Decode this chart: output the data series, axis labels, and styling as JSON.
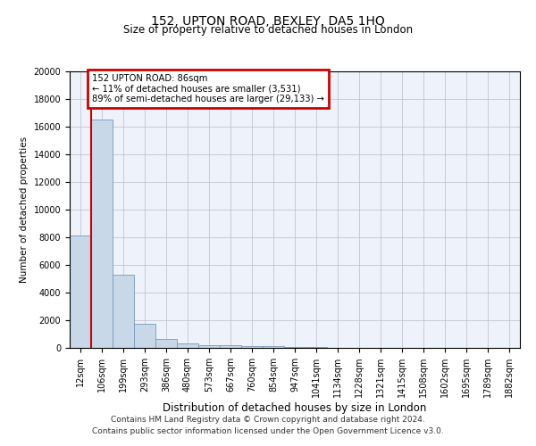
{
  "title": "152, UPTON ROAD, BEXLEY, DA5 1HQ",
  "subtitle": "Size of property relative to detached houses in London",
  "xlabel": "Distribution of detached houses by size in London",
  "ylabel": "Number of detached properties",
  "bin_labels": [
    "12sqm",
    "106sqm",
    "199sqm",
    "293sqm",
    "386sqm",
    "480sqm",
    "573sqm",
    "667sqm",
    "760sqm",
    "854sqm",
    "947sqm",
    "1041sqm",
    "1134sqm",
    "1228sqm",
    "1321sqm",
    "1415sqm",
    "1508sqm",
    "1602sqm",
    "1695sqm",
    "1789sqm",
    "1882sqm"
  ],
  "bar_values": [
    8100,
    16500,
    5300,
    1750,
    650,
    300,
    200,
    175,
    150,
    130,
    60,
    40,
    25,
    15,
    10,
    8,
    6,
    5,
    4,
    3,
    2
  ],
  "bar_color": "#c8d8e8",
  "bar_edge_color": "#7799bb",
  "annotation_line1": "152 UPTON ROAD: 86sqm",
  "annotation_line2": "← 11% of detached houses are smaller (3,531)",
  "annotation_line3": "89% of semi-detached houses are larger (29,133) →",
  "annotation_box_color": "#cc0000",
  "ylim": [
    0,
    20000
  ],
  "yticks": [
    0,
    2000,
    4000,
    6000,
    8000,
    10000,
    12000,
    14000,
    16000,
    18000,
    20000
  ],
  "background_color": "#eef2fa",
  "grid_color": "#bbbbcc",
  "footer_line1": "Contains HM Land Registry data © Crown copyright and database right 2024.",
  "footer_line2": "Contains public sector information licensed under the Open Government Licence v3.0."
}
